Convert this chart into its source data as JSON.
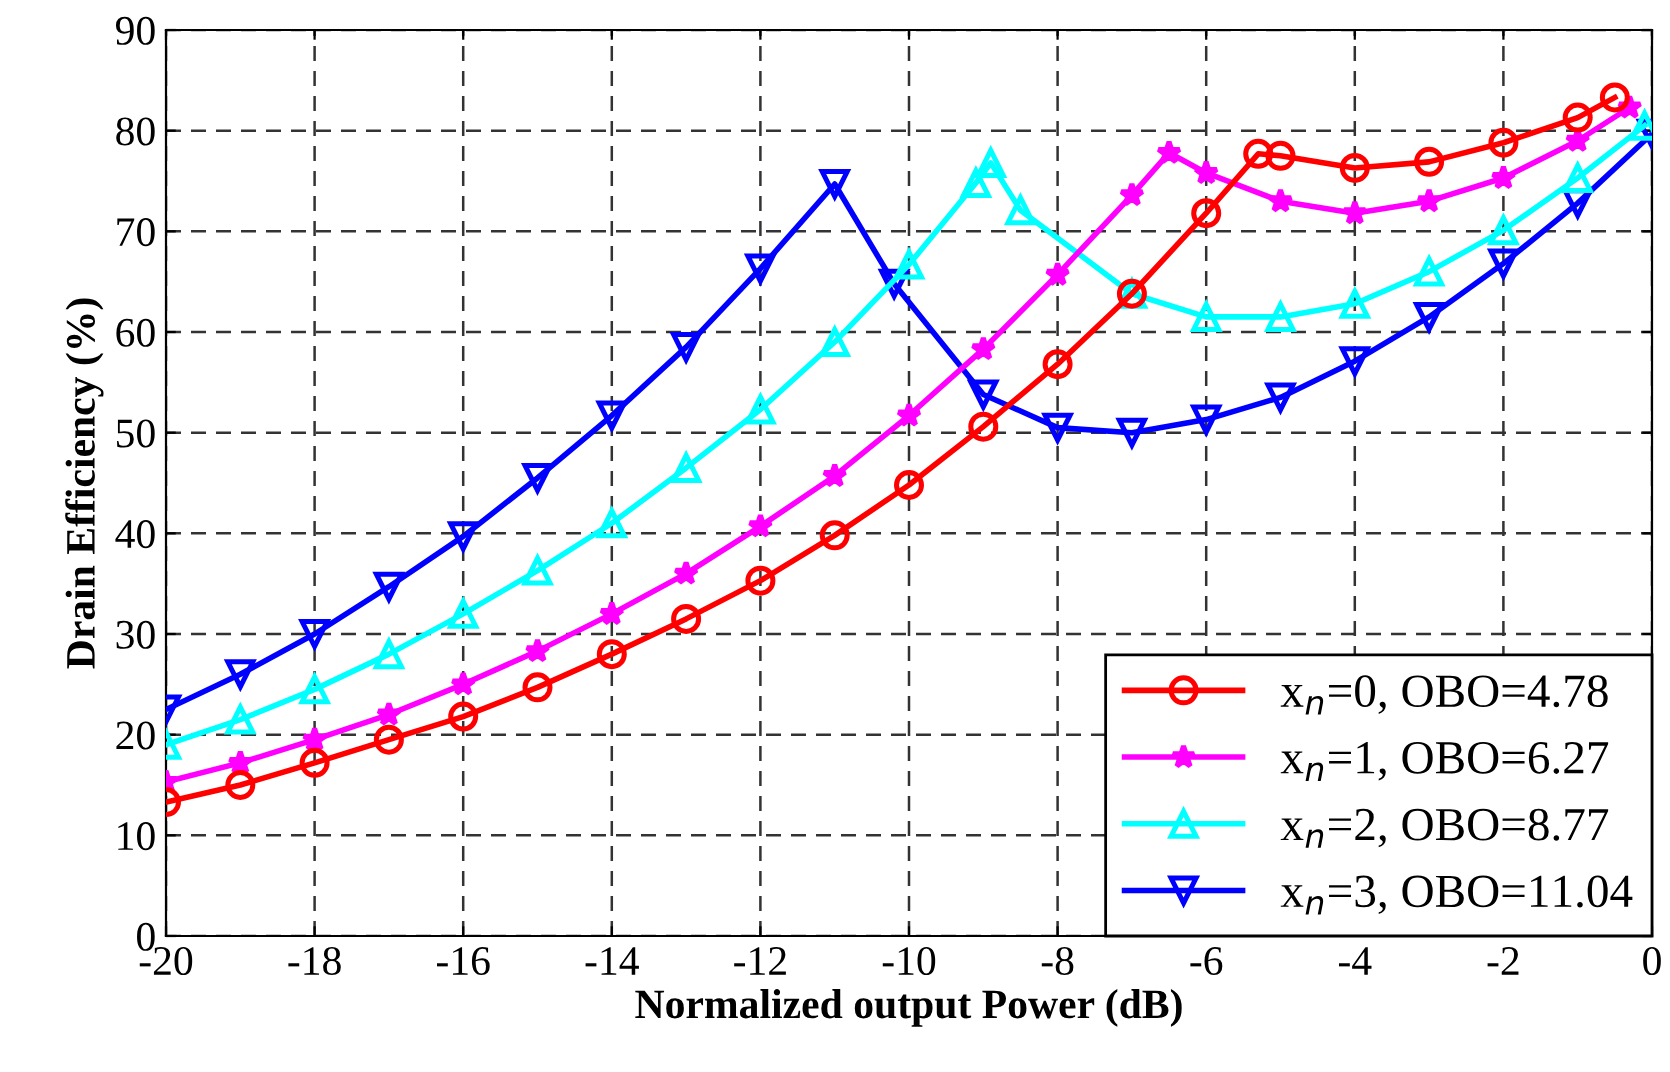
{
  "chart_data": {
    "type": "line",
    "xlabel": "Normalized output Power (dB)",
    "ylabel": "Drain Efficiency (%)",
    "xlim": [
      -20,
      0
    ],
    "xticks": [
      -20,
      -18,
      -16,
      -14,
      -12,
      -10,
      -8,
      -6,
      -4,
      -2,
      0
    ],
    "ylim": [
      0,
      90
    ],
    "yticks": [
      0,
      10,
      20,
      30,
      40,
      50,
      60,
      70,
      80,
      90
    ],
    "grid": true,
    "legend": "bottom right",
    "line_style": "solid",
    "series": [
      {
        "name": "x$_{n}$=0, OBO=4.78",
        "color": "#ff0000",
        "marker": "circle",
        "x": [
          -20,
          -19,
          -18,
          -17,
          -16,
          -15,
          -14,
          -13,
          -12,
          -11,
          -10,
          -9,
          -8,
          -7,
          -6,
          -5.3,
          -5,
          -4,
          -3,
          -2,
          -1,
          -0.5
        ],
        "values": [
          13.3,
          15,
          17.2,
          19.5,
          21.8,
          24.7,
          28,
          31.5,
          35.3,
          39.8,
          44.8,
          50.6,
          56.8,
          63.8,
          71.8,
          77.7,
          77.5,
          76.3,
          76.9,
          78.8,
          81.3,
          83.3
        ]
      },
      {
        "name": "x$_{n}$=1, OBO=6.27",
        "color": "#ff00ff",
        "marker": "star",
        "x": [
          -20,
          -19,
          -18,
          -17,
          -16,
          -15,
          -14,
          -13,
          -12,
          -11,
          -10,
          -9,
          -8,
          -7,
          -6.5,
          -6,
          -5,
          -4,
          -3,
          -2,
          -1,
          -0.3
        ],
        "values": [
          15.3,
          17.2,
          19.5,
          22,
          25,
          28.3,
          32,
          36,
          40.7,
          45.7,
          51.7,
          58.3,
          65.7,
          73.6,
          77.8,
          75.8,
          73,
          71.8,
          73,
          75.3,
          79,
          82.3
        ]
      },
      {
        "name": "x$_{n}$=2, OBO=8.77",
        "color": "#00ffff",
        "marker": "triangle",
        "x": [
          -20,
          -19,
          -18,
          -17,
          -16,
          -15,
          -14,
          -13,
          -12,
          -11,
          -10,
          -9.1,
          -8.9,
          -8.5,
          -7,
          -6,
          -5,
          -4,
          -3,
          -2,
          -1,
          -0.1
        ],
        "values": [
          19,
          21.5,
          24.5,
          28,
          32,
          36.3,
          41,
          46.5,
          52.3,
          59,
          66.7,
          74.8,
          76.8,
          72.1,
          63.8,
          61.5,
          61.5,
          62.8,
          66,
          70.1,
          75.3,
          80.5
        ]
      },
      {
        "name": "x$_{n}$=3, OBO=11.04",
        "color": "#0000ff",
        "marker": "triangle_down",
        "x": [
          -20,
          -19,
          -18,
          -17,
          -16,
          -15,
          -14,
          -13,
          -12,
          -11,
          -10.2,
          -9,
          -8,
          -7,
          -6,
          -5,
          -4,
          -3,
          -2,
          -1,
          0
        ],
        "values": [
          22.5,
          26,
          30,
          34.7,
          39.7,
          45.5,
          51.7,
          58.5,
          66.3,
          74.7,
          64.8,
          53.8,
          50.5,
          50,
          51.3,
          53.5,
          57.1,
          61.5,
          66.8,
          72.8,
          79.7
        ]
      }
    ]
  }
}
